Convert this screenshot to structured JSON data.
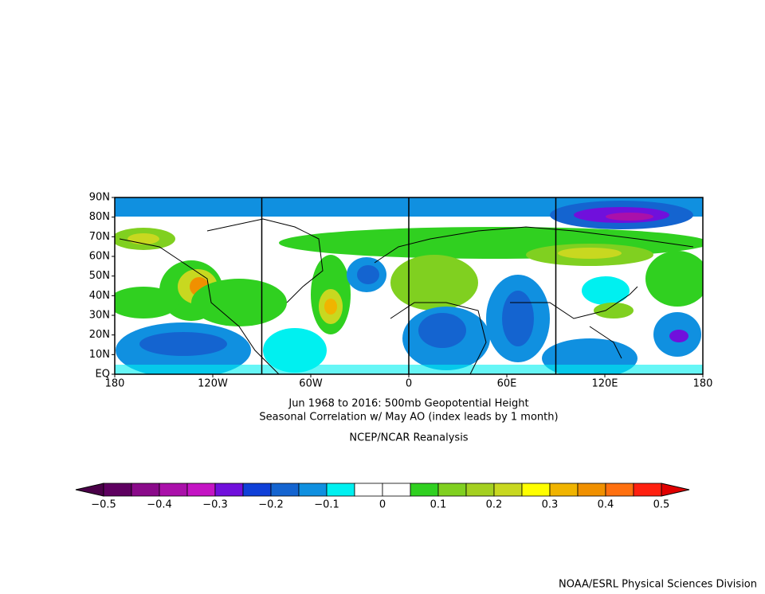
{
  "map": {
    "title_lines": [
      "Jun 1968 to 2016: 500mb Geopotential Height",
      "Seasonal Correlation w/ May AO (index leads by 1 month)"
    ],
    "dataset": "NCEP/NCAR Reanalysis",
    "lon_labels": [
      "180",
      "120W",
      "60W",
      "0",
      "60E",
      "120E",
      "180"
    ],
    "lat_labels": [
      "90N",
      "80N",
      "70N",
      "60N",
      "50N",
      "40N",
      "30N",
      "20N",
      "10N",
      "EQ"
    ],
    "colorbar": {
      "labels": [
        "−0.5",
        "−0.4",
        "−0.3",
        "−0.2",
        "−0.1",
        "0",
        "0.1",
        "0.2",
        "0.3",
        "0.4",
        "0.5"
      ],
      "low_color": "#4a0048",
      "high_color": "#e00000",
      "colors": [
        "#5e0060",
        "#8a0a8a",
        "#aa10aa",
        "#c414c4",
        "#7010dc",
        "#1040d8",
        "#1464d0",
        "#1090e0",
        "#00f0f0",
        "#ffffff",
        "#ffffff",
        "#30d020",
        "#80d020",
        "#a4d020",
        "#c8d820",
        "#ffff00",
        "#f0b400",
        "#f09000",
        "#ff7010",
        "#ff2010"
      ]
    },
    "credit": "NOAA/ESRL Physical Sciences Division"
  }
}
